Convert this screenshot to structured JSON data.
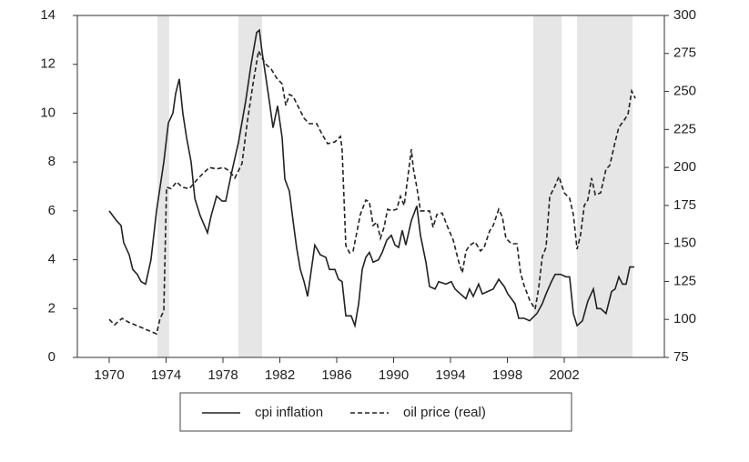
{
  "chart_data": {
    "type": "line",
    "xlim": [
      1967.76,
      2009.04
    ],
    "xticks": [
      1970,
      1974,
      1978,
      1982,
      1986,
      1990,
      1994,
      1998,
      2002
    ],
    "ylim": [
      0,
      14
    ],
    "yticks": [
      0,
      2,
      4,
      6,
      8,
      10,
      12,
      14
    ],
    "y2lim": [
      75,
      300
    ],
    "y2ticks": [
      75,
      100,
      125,
      150,
      175,
      200,
      225,
      250,
      275,
      300
    ],
    "shaded_periods": [
      [
        1973.39,
        1974.22
      ],
      [
        1979.09,
        1980.75
      ],
      [
        1999.82,
        2001.81
      ],
      [
        2002.9,
        2006.8
      ]
    ],
    "shade_color": "#e6e6e6",
    "series": [
      {
        "name": "cpi inflation",
        "color": "#222222",
        "dash": "solid",
        "x": [
          1970.0,
          1970.51,
          1970.83,
          1971.02,
          1971.41,
          1971.66,
          1971.98,
          1972.24,
          1972.56,
          1972.94,
          1973.33,
          1973.84,
          1974.16,
          1974.48,
          1974.67,
          1974.93,
          1975.18,
          1975.44,
          1975.76,
          1976.02,
          1976.4,
          1976.91,
          1977.17,
          1977.55,
          1977.94,
          1978.19,
          1978.58,
          1979.09,
          1979.6,
          1979.98,
          1980.37,
          1980.56,
          1980.75,
          1981.01,
          1981.26,
          1981.52,
          1981.84,
          1982.16,
          1982.35,
          1982.67,
          1982.93,
          1983.18,
          1983.44,
          1983.7,
          1983.95,
          1984.46,
          1984.85,
          1985.23,
          1985.49,
          1985.87,
          1986.13,
          1986.38,
          1986.64,
          1987.02,
          1987.28,
          1987.54,
          1987.79,
          1988.05,
          1988.3,
          1988.56,
          1988.94,
          1989.2,
          1989.52,
          1989.84,
          1990.1,
          1990.35,
          1990.61,
          1990.86,
          1991.25,
          1991.63,
          1991.89,
          1992.27,
          1992.53,
          1992.91,
          1993.17,
          1993.68,
          1994.06,
          1994.32,
          1994.7,
          1995.09,
          1995.34,
          1995.6,
          1995.98,
          1996.24,
          1996.62,
          1997.01,
          1997.39,
          1997.78,
          1998.03,
          1998.29,
          1998.54,
          1998.8,
          1999.18,
          1999.57,
          2000.08,
          2000.46,
          2000.72,
          2001.1,
          2001.36,
          2001.74,
          2002.13,
          2002.38,
          2002.64,
          2002.9,
          2003.28,
          2003.66,
          2004.05,
          2004.3,
          2004.56,
          2004.94,
          2005.33,
          2005.58,
          2005.84,
          2006.1,
          2006.35,
          2006.61,
          2006.93
        ],
        "values": [
          6.0,
          5.6,
          5.4,
          4.7,
          4.2,
          3.6,
          3.4,
          3.1,
          3.0,
          4.0,
          6.0,
          8.0,
          9.6,
          10.0,
          10.8,
          11.4,
          10.0,
          9.0,
          8.0,
          6.5,
          5.8,
          5.1,
          5.8,
          6.6,
          6.4,
          6.4,
          7.5,
          8.8,
          10.5,
          12.0,
          13.3,
          13.4,
          12.5,
          11.5,
          10.5,
          9.4,
          10.3,
          9.0,
          7.3,
          6.8,
          5.6,
          4.5,
          3.6,
          3.1,
          2.5,
          4.6,
          4.2,
          4.1,
          3.6,
          3.6,
          3.2,
          3.1,
          1.7,
          1.7,
          1.3,
          2.2,
          3.6,
          4.1,
          4.3,
          3.9,
          4.0,
          4.3,
          4.8,
          5.0,
          4.6,
          4.5,
          5.2,
          4.6,
          5.6,
          6.2,
          5.0,
          3.9,
          2.9,
          2.8,
          3.1,
          3.0,
          3.1,
          2.8,
          2.6,
          2.4,
          2.8,
          2.5,
          3.0,
          2.6,
          2.7,
          2.8,
          3.2,
          2.9,
          2.6,
          2.4,
          2.2,
          1.6,
          1.6,
          1.5,
          1.8,
          2.2,
          2.6,
          3.1,
          3.4,
          3.4,
          3.3,
          3.3,
          1.8,
          1.3,
          1.5,
          2.3,
          2.8,
          2.0,
          2.0,
          1.8,
          2.7,
          2.8,
          3.3,
          3.0,
          3.0,
          3.7,
          3.7
        ]
      },
      {
        "name": "oil price (real)",
        "color": "#222222",
        "dash": "dashed",
        "axis": "y2",
        "x": [
          1970.0,
          1970.38,
          1970.9,
          1971.41,
          1971.92,
          1972.56,
          1973.33,
          1973.58,
          1973.84,
          1974.03,
          1974.35,
          1974.74,
          1975.12,
          1975.63,
          1976.27,
          1977.04,
          1977.55,
          1978.06,
          1978.45,
          1978.83,
          1979.34,
          1979.73,
          1980.11,
          1980.5,
          1980.75,
          1981.01,
          1981.39,
          1981.78,
          1982.16,
          1982.42,
          1982.67,
          1982.93,
          1983.31,
          1983.7,
          1984.08,
          1984.59,
          1984.98,
          1985.36,
          1985.87,
          1986.26,
          1986.38,
          1986.64,
          1986.9,
          1987.15,
          1987.41,
          1987.66,
          1988.05,
          1988.3,
          1988.56,
          1988.82,
          1989.07,
          1989.33,
          1989.58,
          1989.84,
          1990.22,
          1990.48,
          1990.74,
          1990.99,
          1991.25,
          1991.38,
          1991.63,
          1991.89,
          1992.27,
          1992.53,
          1992.78,
          1993.04,
          1993.42,
          1993.81,
          1994.19,
          1994.58,
          1994.83,
          1995.09,
          1995.34,
          1995.73,
          1996.11,
          1996.37,
          1996.75,
          1997.01,
          1997.39,
          1997.65,
          1997.9,
          1998.29,
          1998.67,
          1998.93,
          1999.18,
          1999.57,
          1999.95,
          2000.21,
          2000.46,
          2000.72,
          2000.98,
          2001.36,
          2001.62,
          2002.0,
          2002.38,
          2002.64,
          2002.9,
          2003.15,
          2003.41,
          2003.66,
          2003.92,
          2004.18,
          2004.56,
          2004.94,
          2005.2,
          2005.58,
          2005.84,
          2006.22,
          2006.48,
          2006.74,
          2007.0
        ],
        "values": [
          100,
          96.5,
          100.7,
          98,
          96,
          93.5,
          90.5,
          100.7,
          105.5,
          187,
          186,
          190.5,
          187,
          186,
          193,
          200,
          199,
          200,
          197.7,
          193,
          202.5,
          231,
          255,
          276.7,
          272,
          268,
          264.7,
          258.7,
          255,
          240.8,
          248,
          246.8,
          239.6,
          232.4,
          228.8,
          228.8,
          221.6,
          215.6,
          216.8,
          220.4,
          212,
          148.6,
          143.8,
          145,
          157,
          169,
          178.5,
          177.3,
          161.8,
          164,
          153.4,
          160.6,
          172.5,
          171.5,
          172.5,
          181,
          175,
          193,
          212,
          199.5,
          187,
          171.4,
          171.4,
          171.4,
          160.6,
          169,
          170,
          160.6,
          152.2,
          137.8,
          130.6,
          145,
          148.6,
          151,
          145,
          147.4,
          158.2,
          161.8,
          172.5,
          167.5,
          153.4,
          149.8,
          149.8,
          130.6,
          122.3,
          112.7,
          106.7,
          121,
          141.4,
          147.4,
          181,
          188,
          194,
          183.3,
          179.7,
          169,
          146.2,
          155.8,
          175,
          178.5,
          193,
          182,
          183.3,
          198.9,
          201.3,
          216.8,
          226.4,
          231.2,
          234.8,
          250.3,
          245.5
        ]
      }
    ]
  }
}
